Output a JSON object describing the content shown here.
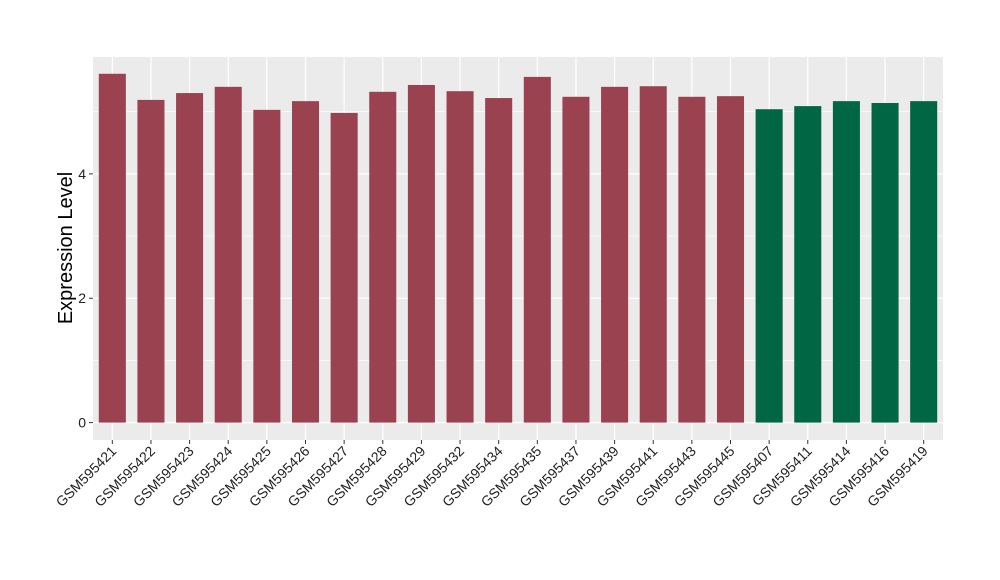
{
  "chart_data": {
    "type": "bar",
    "title": "",
    "xlabel": "",
    "ylabel": "Expression Level",
    "ylim": [
      -0.28,
      5.88
    ],
    "yticks": [
      0,
      2,
      4
    ],
    "grid": true,
    "categories": [
      "GSM595421",
      "GSM595422",
      "GSM595423",
      "GSM595424",
      "GSM595425",
      "GSM595426",
      "GSM595427",
      "GSM595428",
      "GSM595429",
      "GSM595432",
      "GSM595434",
      "GSM595435",
      "GSM595437",
      "GSM595439",
      "GSM595441",
      "GSM595443",
      "GSM595445",
      "GSM595407",
      "GSM595411",
      "GSM595414",
      "GSM595416",
      "GSM595419"
    ],
    "values": [
      5.61,
      5.19,
      5.3,
      5.4,
      5.03,
      5.17,
      4.98,
      5.32,
      5.43,
      5.33,
      5.22,
      5.56,
      5.24,
      5.4,
      5.41,
      5.24,
      5.25,
      5.04,
      5.09,
      5.17,
      5.14,
      5.17
    ],
    "group_colors": [
      "#9B4250",
      "#9B4250",
      "#9B4250",
      "#9B4250",
      "#9B4250",
      "#9B4250",
      "#9B4250",
      "#9B4250",
      "#9B4250",
      "#9B4250",
      "#9B4250",
      "#9B4250",
      "#9B4250",
      "#9B4250",
      "#9B4250",
      "#9B4250",
      "#9B4250",
      "#006644",
      "#006644",
      "#006644",
      "#006644",
      "#006644"
    ],
    "panel_color": "#EBEBEB"
  }
}
